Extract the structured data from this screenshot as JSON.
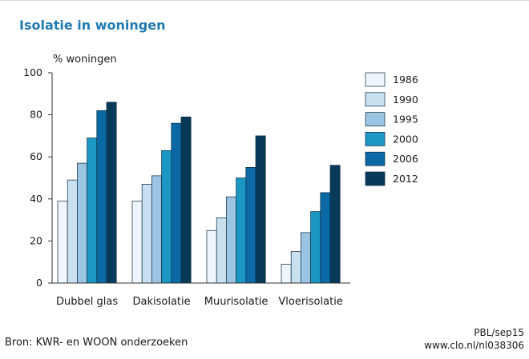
{
  "chart_data": {
    "type": "bar",
    "title": "Isolatie in woningen",
    "ylabel": "% woningen",
    "xlabel": "",
    "ylim": [
      0,
      100
    ],
    "yticks": [
      0,
      20,
      40,
      60,
      80,
      100
    ],
    "grid": false,
    "legend_position": "right",
    "categories": [
      "Dubbel glas",
      "Dakisolatie",
      "Muurisolatie",
      "Vloerisolatie"
    ],
    "series": [
      {
        "name": "1986",
        "color": "#eef6fb",
        "values": [
          39,
          39,
          25,
          9
        ]
      },
      {
        "name": "1990",
        "color": "#c8e0f0",
        "values": [
          49,
          47,
          31,
          15
        ]
      },
      {
        "name": "1995",
        "color": "#9cc5e3",
        "values": [
          57,
          51,
          41,
          24
        ]
      },
      {
        "name": "2000",
        "color": "#1b97c4",
        "values": [
          69,
          63,
          50,
          34
        ]
      },
      {
        "name": "2006",
        "color": "#0b6aa6",
        "values": [
          82,
          76,
          55,
          43
        ]
      },
      {
        "name": "2012",
        "color": "#073a58",
        "values": [
          86,
          79,
          70,
          56
        ]
      }
    ],
    "source": "Bron: KWR- en WOON onderzoeken",
    "credit": [
      "PBL/sep15",
      "www.clo.nl/nl038306"
    ]
  }
}
